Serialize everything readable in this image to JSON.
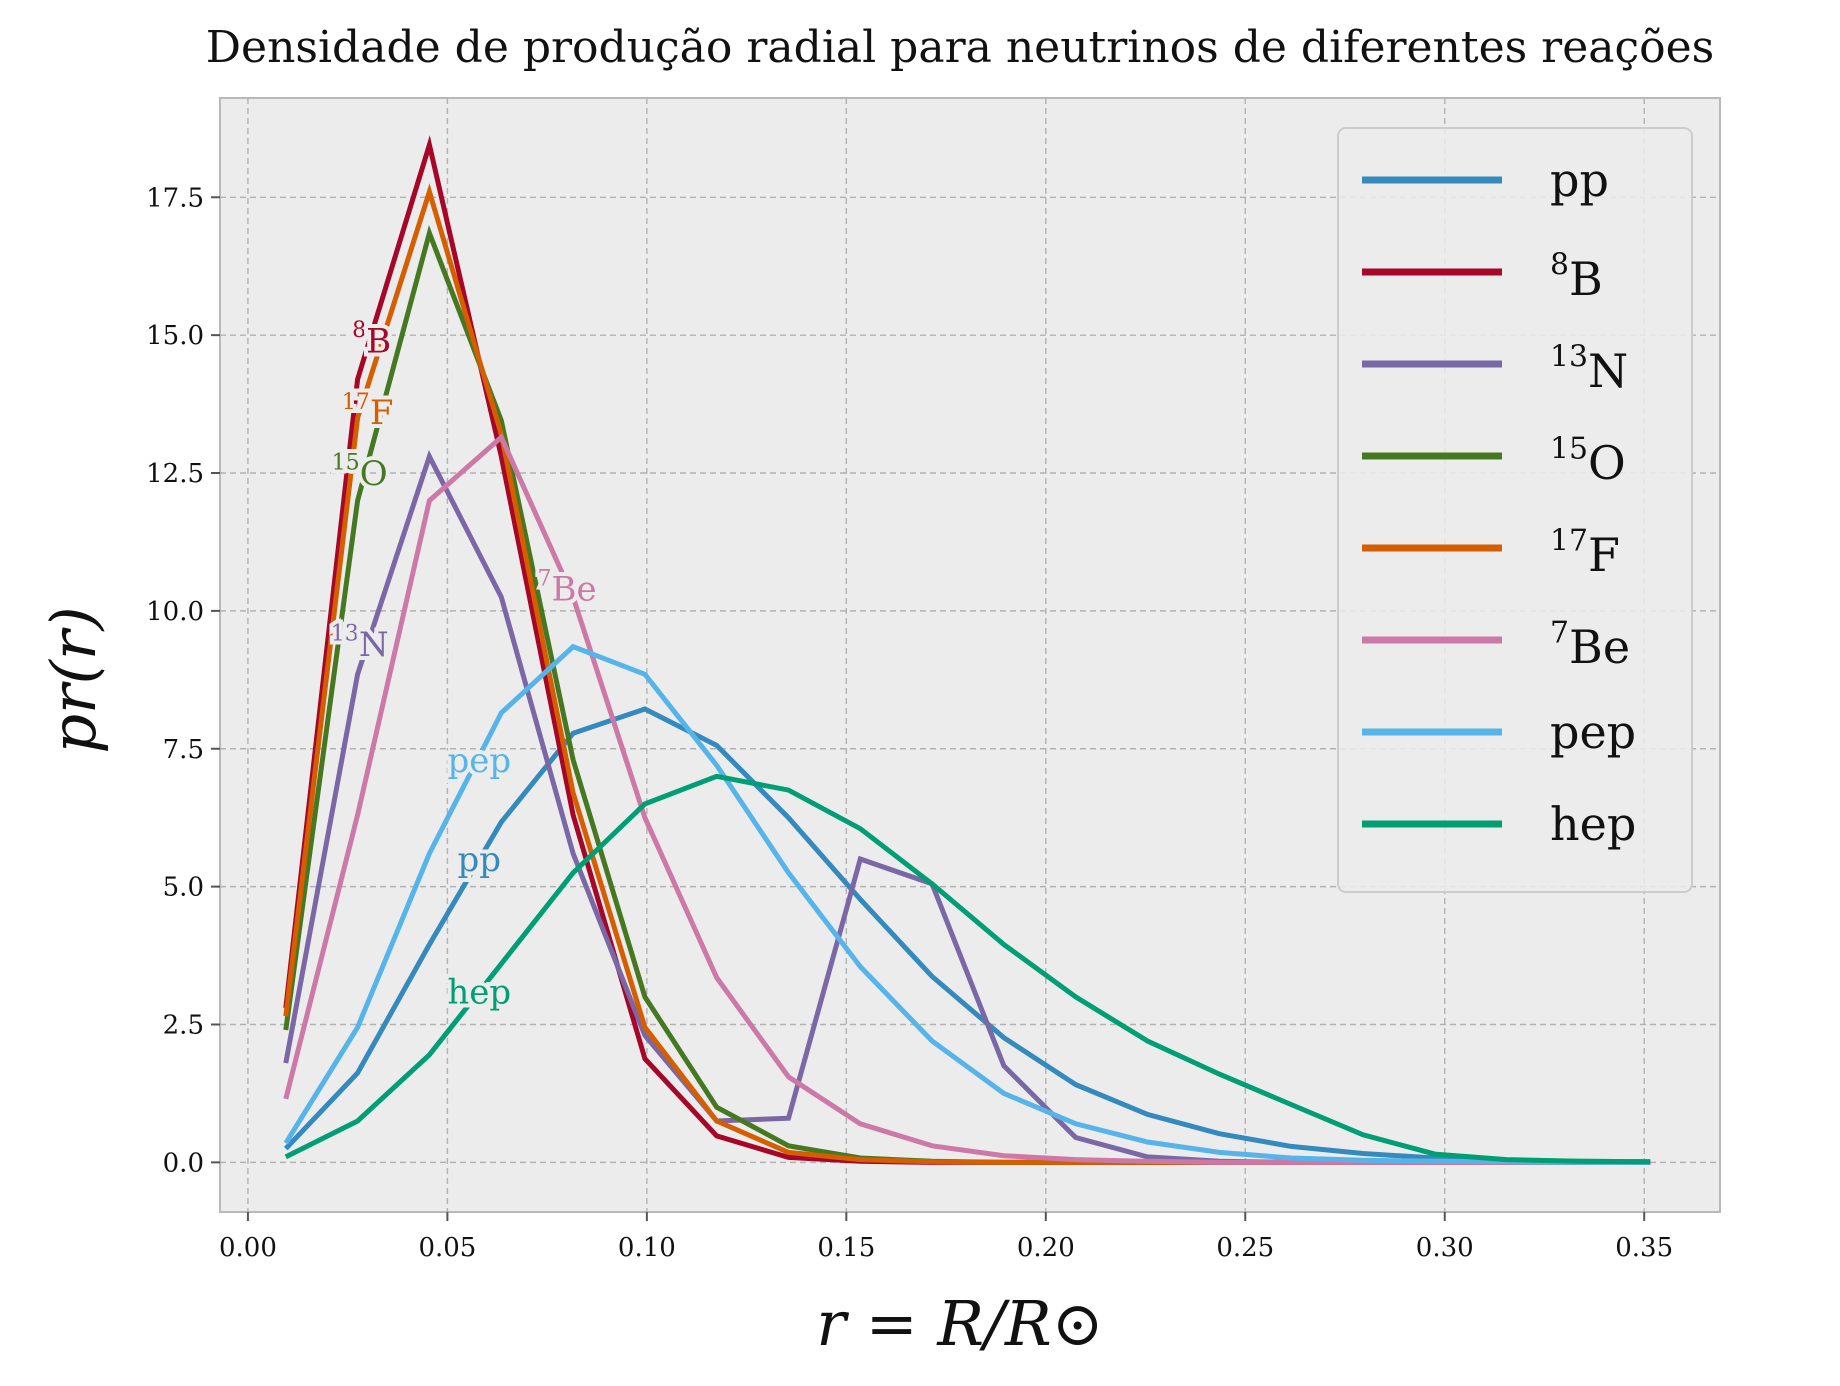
{
  "chart_data": {
    "type": "line",
    "title": "Densidade de produção radial para neutrinos de diferentes reações",
    "xlabel": "r = R/R⊙",
    "ylabel": "pr(r)",
    "xlim": [
      -0.007,
      0.369
    ],
    "ylim": [
      -0.9,
      19.3
    ],
    "xticks": [
      0.0,
      0.05,
      0.1,
      0.15,
      0.2,
      0.25,
      0.3,
      0.35
    ],
    "xtick_labels": [
      "0.00",
      "0.05",
      "0.10",
      "0.15",
      "0.20",
      "0.25",
      "0.30",
      "0.35"
    ],
    "yticks": [
      0.0,
      2.5,
      5.0,
      7.5,
      10.0,
      12.5,
      15.0,
      17.5
    ],
    "ytick_labels": [
      "0.0",
      "2.5",
      "5.0",
      "7.5",
      "10.0",
      "12.5",
      "15.0",
      "17.5"
    ],
    "grid": true,
    "legend_position": "top-right",
    "series": [
      {
        "name": "pp",
        "sup": "",
        "base": "pp",
        "color": "#348abd",
        "x": [
          0.0095,
          0.0275,
          0.0455,
          0.0635,
          0.0815,
          0.0995,
          0.1175,
          0.1355,
          0.1535,
          0.1715,
          0.1895,
          0.2075,
          0.2255,
          0.2435,
          0.2615,
          0.2795,
          0.2975,
          0.3155,
          0.3335,
          0.3515
        ],
        "values": [
          0.25,
          1.62,
          3.95,
          6.17,
          7.78,
          8.22,
          7.56,
          6.25,
          4.77,
          3.37,
          2.26,
          1.41,
          0.87,
          0.52,
          0.29,
          0.16,
          0.08,
          0.04,
          0.02,
          0.01
        ],
        "label": {
          "x": 0.058,
          "y": 5.5
        }
      },
      {
        "name": "8B",
        "sup": "8",
        "base": "B",
        "color": "#a60628",
        "x": [
          0.0095,
          0.0275,
          0.0455,
          0.0635,
          0.0815,
          0.0995,
          0.1175,
          0.1355,
          0.1535,
          0.1715,
          0.1895,
          0.2075,
          0.2255,
          0.2435,
          0.2615,
          0.2795,
          0.2975,
          0.3155,
          0.3335,
          0.3515
        ],
        "values": [
          2.8,
          14.2,
          18.45,
          12.8,
          6.3,
          1.88,
          0.48,
          0.09,
          0.02,
          0.0,
          0.0,
          0.0,
          0.0,
          0.0,
          0.0,
          0.0,
          0.0,
          0.0,
          0.0,
          0.0
        ],
        "label": {
          "x": 0.031,
          "y": 15.0
        }
      },
      {
        "name": "13N",
        "sup": "13",
        "base": "N",
        "color": "#7a68a6",
        "x": [
          0.0095,
          0.0275,
          0.0455,
          0.0635,
          0.0815,
          0.0995,
          0.1175,
          0.1355,
          0.1535,
          0.1715,
          0.1895,
          0.2075,
          0.2255,
          0.2435,
          0.2615,
          0.2795,
          0.2975,
          0.3155,
          0.3335,
          0.3515
        ],
        "values": [
          1.8,
          8.85,
          12.8,
          10.25,
          5.6,
          2.3,
          0.75,
          0.8,
          5.5,
          5.05,
          1.75,
          0.45,
          0.1,
          0.02,
          0.0,
          0.0,
          0.0,
          0.0,
          0.0,
          0.0
        ],
        "label": {
          "x": 0.028,
          "y": 9.5
        }
      },
      {
        "name": "15O",
        "sup": "15",
        "base": "O",
        "color": "#467821",
        "x": [
          0.0095,
          0.0275,
          0.0455,
          0.0635,
          0.0815,
          0.0995,
          0.1175,
          0.1355,
          0.1535,
          0.1715,
          0.1895,
          0.2075,
          0.2255,
          0.2435,
          0.2615,
          0.2795,
          0.2975,
          0.3155,
          0.3335,
          0.3515
        ],
        "values": [
          2.4,
          12.0,
          16.85,
          13.45,
          7.3,
          3.0,
          1.0,
          0.3,
          0.08,
          0.02,
          0.0,
          0.0,
          0.0,
          0.0,
          0.0,
          0.0,
          0.0,
          0.0,
          0.0,
          0.0
        ],
        "label": {
          "x": 0.028,
          "y": 12.6
        }
      },
      {
        "name": "17F",
        "sup": "17",
        "base": "F",
        "color": "#d55e00",
        "x": [
          0.0095,
          0.0275,
          0.0455,
          0.0635,
          0.0815,
          0.0995,
          0.1175,
          0.1355,
          0.1535,
          0.1715,
          0.1895,
          0.2075,
          0.2255,
          0.2435,
          0.2615,
          0.2795,
          0.2975,
          0.3155,
          0.3335,
          0.3515
        ],
        "values": [
          2.65,
          13.5,
          17.6,
          13.2,
          6.7,
          2.45,
          0.75,
          0.18,
          0.05,
          0.01,
          0.0,
          0.0,
          0.0,
          0.0,
          0.0,
          0.0,
          0.0,
          0.0,
          0.0,
          0.0
        ],
        "label": {
          "x": 0.03,
          "y": 13.7
        }
      },
      {
        "name": "7Be",
        "sup": "7",
        "base": "Be",
        "color": "#cc79a7",
        "x": [
          0.0095,
          0.0275,
          0.0455,
          0.0635,
          0.0815,
          0.0995,
          0.1175,
          0.1355,
          0.1535,
          0.1715,
          0.1895,
          0.2075,
          0.2255,
          0.2435,
          0.2615,
          0.2795,
          0.2975,
          0.3155,
          0.3335,
          0.3515
        ],
        "values": [
          1.15,
          6.3,
          12.0,
          13.15,
          10.25,
          6.25,
          3.35,
          1.55,
          0.7,
          0.3,
          0.12,
          0.05,
          0.02,
          0.0,
          0.0,
          0.0,
          0.0,
          0.0,
          0.0,
          0.0
        ],
        "label": {
          "x": 0.08,
          "y": 10.5
        }
      },
      {
        "name": "pep",
        "sup": "",
        "base": "pep",
        "color": "#56b4e9",
        "x": [
          0.0095,
          0.0275,
          0.0455,
          0.0635,
          0.0815,
          0.0995,
          0.1175,
          0.1355,
          0.1535,
          0.1715,
          0.1895,
          0.2075,
          0.2255,
          0.2435,
          0.2615,
          0.2795,
          0.2975,
          0.3155,
          0.3335,
          0.3515
        ],
        "values": [
          0.35,
          2.45,
          5.6,
          8.15,
          9.35,
          8.85,
          7.2,
          5.25,
          3.55,
          2.2,
          1.25,
          0.7,
          0.37,
          0.18,
          0.08,
          0.04,
          0.02,
          0.01,
          0.0,
          0.0
        ],
        "label": {
          "x": 0.058,
          "y": 7.3
        }
      },
      {
        "name": "hep",
        "sup": "",
        "base": "hep",
        "color": "#009e73",
        "x": [
          0.0095,
          0.0275,
          0.0455,
          0.0635,
          0.0815,
          0.0995,
          0.1175,
          0.1355,
          0.1535,
          0.1715,
          0.1895,
          0.2075,
          0.2255,
          0.2435,
          0.2615,
          0.2795,
          0.2975,
          0.3155,
          0.3335,
          0.3515
        ],
        "values": [
          0.1,
          0.75,
          1.95,
          3.6,
          5.25,
          6.5,
          7.0,
          6.75,
          6.05,
          5.05,
          3.95,
          3.0,
          2.2,
          1.6,
          1.05,
          0.5,
          0.15,
          0.05,
          0.02,
          0.01
        ],
        "label": {
          "x": 0.058,
          "y": 3.1
        }
      }
    ]
  }
}
